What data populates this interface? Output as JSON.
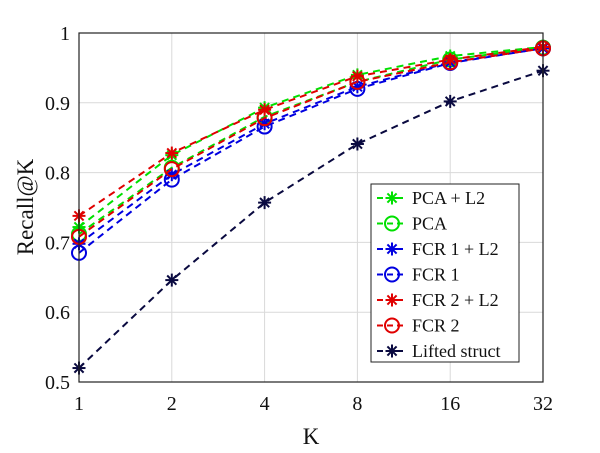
{
  "chart_data": {
    "type": "line",
    "title": "",
    "xlabel": "K",
    "ylabel": "Recall@K",
    "categories": [
      "1",
      "2",
      "4",
      "8",
      "16",
      "32"
    ],
    "ylim": [
      0.5,
      1.0
    ],
    "yticks": [
      "0.5",
      "0.6",
      "0.7",
      "0.8",
      "0.9",
      "1"
    ],
    "grid": true,
    "legend_position": "lower-right",
    "series": [
      {
        "name": "PCA + L2",
        "color": "#00e000",
        "marker": "asterisk",
        "values": [
          0.722,
          0.825,
          0.893,
          0.94,
          0.967,
          0.98
        ]
      },
      {
        "name": "PCA",
        "color": "#00e000",
        "marker": "circle",
        "values": [
          0.712,
          0.807,
          0.88,
          0.93,
          0.962,
          0.979
        ]
      },
      {
        "name": "FCR 1 + L2",
        "color": "#0000e0",
        "marker": "asterisk",
        "values": [
          0.698,
          0.797,
          0.87,
          0.923,
          0.958,
          0.978
        ]
      },
      {
        "name": "FCR 1",
        "color": "#0000e0",
        "marker": "circle",
        "values": [
          0.685,
          0.79,
          0.866,
          0.92,
          0.957,
          0.978
        ]
      },
      {
        "name": "FCR 2 + L2",
        "color": "#e00000",
        "marker": "asterisk",
        "values": [
          0.738,
          0.828,
          0.89,
          0.938,
          0.962,
          0.98
        ]
      },
      {
        "name": "FCR 2",
        "color": "#e00000",
        "marker": "circle",
        "values": [
          0.708,
          0.805,
          0.878,
          0.93,
          0.958,
          0.978
        ]
      },
      {
        "name": "Lifted struct",
        "color": "#0a0a40",
        "marker": "asterisk",
        "values": [
          0.52,
          0.646,
          0.757,
          0.841,
          0.902,
          0.946
        ]
      }
    ]
  }
}
